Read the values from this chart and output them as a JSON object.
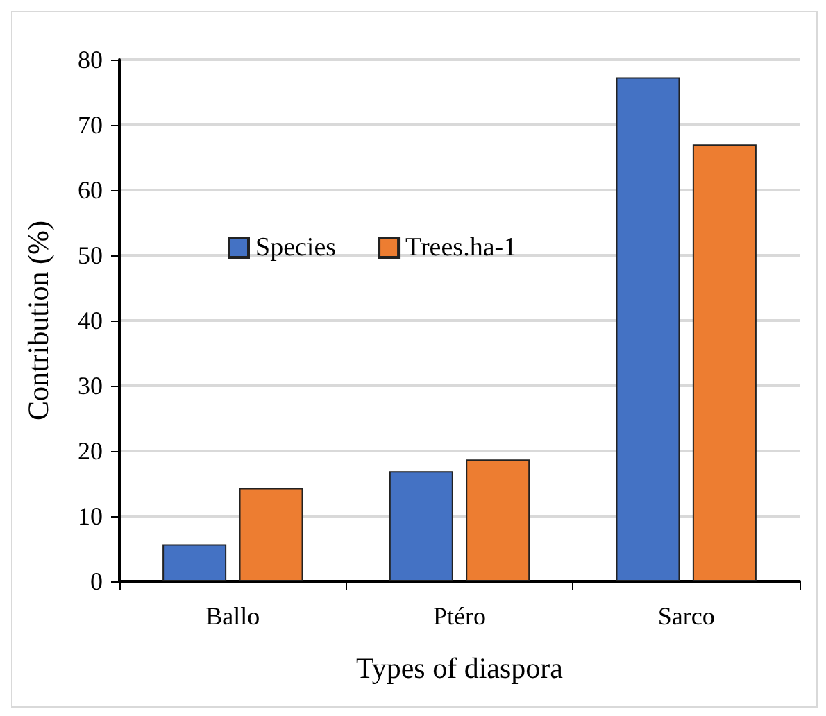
{
  "chart_data": {
    "type": "bar",
    "xlabel": "Types of diaspora",
    "ylabel": "Contribution (%)",
    "categories": [
      "Ballo",
      "Ptéro",
      "Sarco"
    ],
    "series": [
      {
        "name": "Species",
        "color": "#4472c4",
        "values": [
          5.7,
          16.9,
          77.3
        ]
      },
      {
        "name": "Trees.ha-1",
        "color": "#ed7d31",
        "values": [
          14.3,
          18.7,
          67.0
        ]
      }
    ],
    "ylim": [
      0,
      80
    ],
    "yticks": [
      0,
      10,
      20,
      30,
      40,
      50,
      60,
      70,
      80
    ],
    "grid": "y",
    "legend": "top left"
  }
}
